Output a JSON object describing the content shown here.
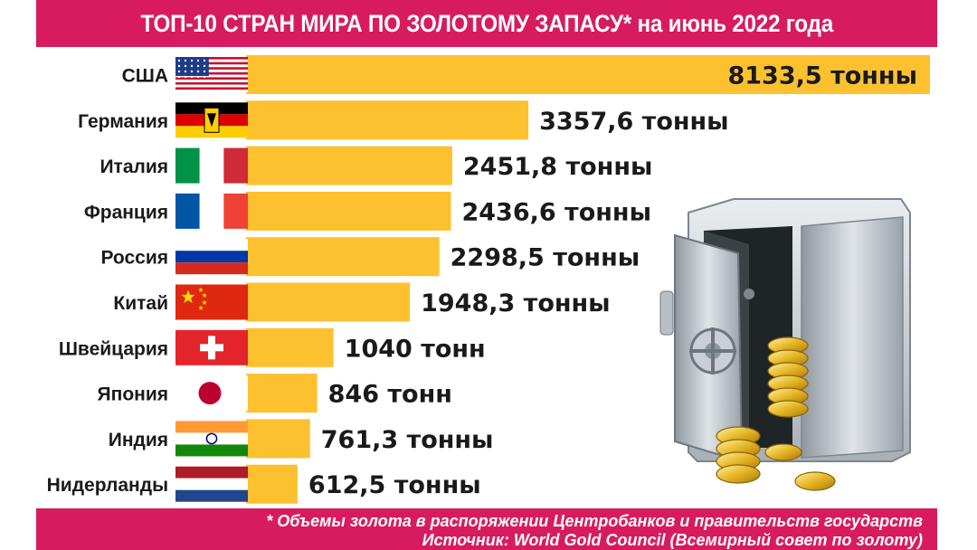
{
  "title": "ТОП-10 СТРАН МИРА ПО ЗОЛОТОМУ ЗАПАСУ* на июнь 2022 года",
  "footnote": {
    "line1": "* Объемы золота в распоряжении Центробанков и правительств государств",
    "line2": "Источник: World Gold Council (Всемирный совет по золоту)"
  },
  "colors": {
    "accent": "#d81b5f",
    "bar": "#fdc12f"
  },
  "chart_data": {
    "type": "bar",
    "orientation": "horizontal",
    "title": "ТОП-10 СТРАН МИРА ПО ЗОЛОТОМУ ЗАПАСУ* на июнь 2022 года",
    "categories": [
      "США",
      "Германия",
      "Италия",
      "Франция",
      "Россия",
      "Китай",
      "Швейцария",
      "Япония",
      "Индия",
      "Нидерланды"
    ],
    "values": [
      8133.5,
      3357.6,
      2451.8,
      2436.6,
      2298.5,
      1948.3,
      1040,
      846,
      761.3,
      612.5
    ],
    "value_labels": [
      "8133,5 тонны",
      "3357,6 тонны",
      "2451,8 тонны",
      "2436,6 тонны",
      "2298,5 тонны",
      "1948,3 тонны",
      "1040 тонн",
      "846 тонн",
      "761,3 тонны",
      "612,5 тонны"
    ],
    "flags": [
      "usa-flag",
      "germany-flag",
      "italy-flag",
      "france-flag",
      "russia-flag",
      "china-flag",
      "switzerland-flag",
      "japan-flag",
      "india-flag",
      "netherlands-flag"
    ],
    "xlim": [
      0,
      8133.5
    ],
    "grid": false,
    "legend": "none"
  }
}
